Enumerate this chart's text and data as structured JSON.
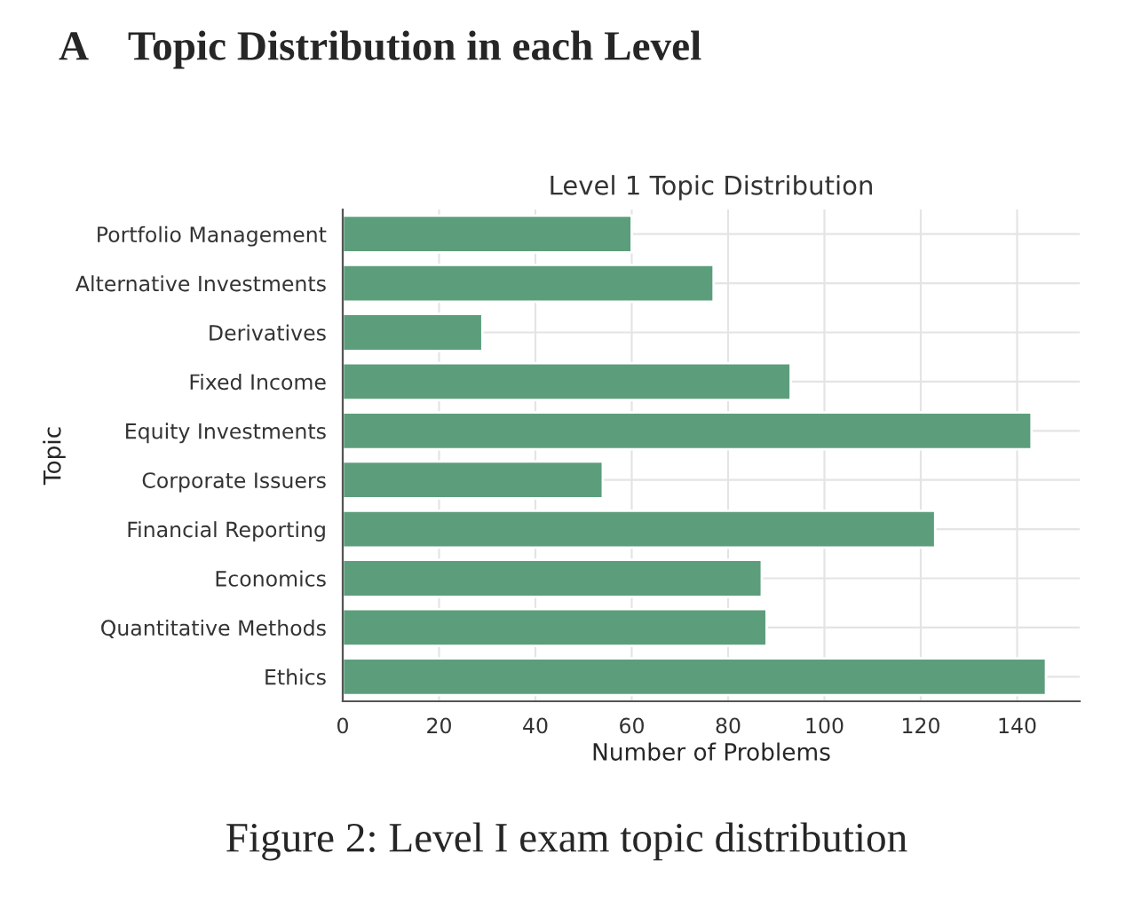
{
  "chart_data": {
    "type": "bar",
    "orientation": "horizontal",
    "title": "A    Topic Distribution in each Level",
    "subtitle": "Level 1 Topic Distribution",
    "xlabel": "Number of Problems",
    "ylabel": "Topic",
    "categories": [
      "Portfolio Management",
      "Alternative Investments",
      "Derivatives",
      "Fixed Income",
      "Equity Investments",
      "Corporate Issuers",
      "Financial Reporting",
      "Economics",
      "Quantitative Methods",
      "Ethics"
    ],
    "values": [
      60,
      77,
      29,
      93,
      143,
      54,
      123,
      87,
      88,
      146
    ],
    "color": "#5c9e7c",
    "xlim": [
      0,
      153
    ],
    "xticks": [
      0,
      20,
      40,
      60,
      80,
      100,
      120,
      140
    ],
    "grid": true,
    "annotations": [
      "Figure 2: Level I exam topic distribution"
    ]
  }
}
